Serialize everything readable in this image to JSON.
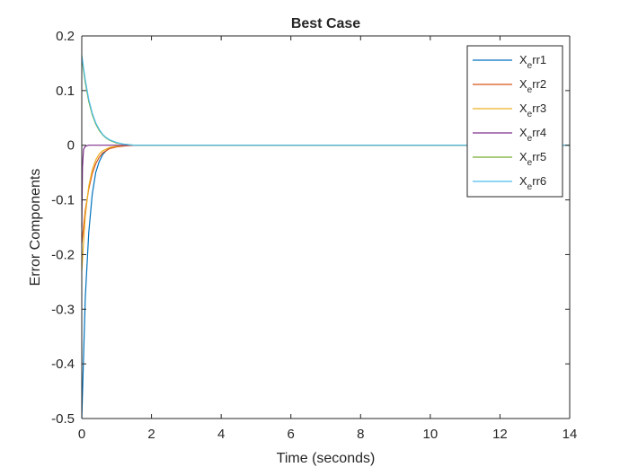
{
  "chart_data": {
    "type": "line",
    "title": "Best Case",
    "xlabel": "Time (seconds)",
    "ylabel": "Error Components",
    "xlim": [
      0,
      14
    ],
    "ylim": [
      -0.5,
      0.2
    ],
    "xticks": [
      0,
      2,
      4,
      6,
      8,
      10,
      12,
      14
    ],
    "xtick_labels": [
      "0",
      "2",
      "4",
      "6",
      "8",
      "10",
      "12",
      "14"
    ],
    "yticks": [
      0.2,
      0.1,
      0,
      -0.1,
      -0.2,
      -0.3,
      -0.4,
      -0.5
    ],
    "ytick_labels": [
      "0.2",
      "0.1",
      "0",
      "-0.1",
      "-0.2",
      "-0.3",
      "-0.4",
      "-0.5"
    ],
    "grid": false,
    "legend_position": "top-right",
    "series": [
      {
        "name": "X_err1",
        "legend_base": "X",
        "legend_sub": "e",
        "legend_rest": "rr1",
        "color": "#0072BD",
        "x": [
          0,
          0.1,
          0.2,
          0.3,
          0.4,
          0.5,
          0.6,
          0.7,
          0.8,
          1.0,
          1.2,
          1.5,
          2.0,
          14
        ],
        "y": [
          -0.5,
          -0.28,
          -0.16,
          -0.09,
          -0.05,
          -0.03,
          -0.017,
          -0.01,
          -0.005,
          -0.002,
          -0.001,
          0,
          0,
          0
        ]
      },
      {
        "name": "X_err2",
        "legend_base": "X",
        "legend_sub": "e",
        "legend_rest": "rr2",
        "color": "#D95319",
        "x": [
          0,
          0.1,
          0.2,
          0.3,
          0.4,
          0.5,
          0.6,
          0.8,
          1.0,
          1.3,
          1.6,
          2.0,
          14
        ],
        "y": [
          -0.18,
          -0.12,
          -0.08,
          -0.052,
          -0.034,
          -0.022,
          -0.014,
          -0.006,
          -0.003,
          -0.001,
          0,
          0,
          0
        ]
      },
      {
        "name": "X_err3",
        "legend_base": "X",
        "legend_sub": "e",
        "legend_rest": "rr3",
        "color": "#EDB120",
        "x": [
          0,
          0.1,
          0.2,
          0.3,
          0.4,
          0.5,
          0.6,
          0.8,
          1.0,
          1.3,
          1.6,
          2.0,
          14
        ],
        "y": [
          -0.23,
          -0.13,
          -0.075,
          -0.045,
          -0.027,
          -0.016,
          -0.01,
          -0.004,
          -0.0015,
          0,
          0,
          0,
          0
        ]
      },
      {
        "name": "X_err4",
        "legend_base": "X",
        "legend_sub": "e",
        "legend_rest": "rr4",
        "color": "#7E2F8E",
        "x": [
          0,
          0.02,
          0.05,
          0.1,
          0.2,
          0.4,
          14
        ],
        "y": [
          -0.15,
          -0.04,
          -0.008,
          -0.002,
          0,
          0,
          0
        ]
      },
      {
        "name": "X_err5",
        "legend_base": "X",
        "legend_sub": "e",
        "legend_rest": "rr5",
        "color": "#77AC30",
        "x": [
          0,
          0.1,
          0.2,
          0.3,
          0.4,
          0.5,
          0.6,
          0.7,
          0.8,
          1.0,
          1.2,
          1.5,
          2.0,
          14
        ],
        "y": [
          0.16,
          0.115,
          0.08,
          0.056,
          0.039,
          0.027,
          0.019,
          0.013,
          0.009,
          0.004,
          0.002,
          0,
          0,
          0
        ]
      },
      {
        "name": "X_err6",
        "legend_base": "X",
        "legend_sub": "e",
        "legend_rest": "rr6",
        "color": "#4DBEEE",
        "x": [
          0,
          0.1,
          0.2,
          0.3,
          0.4,
          0.5,
          0.6,
          0.7,
          0.8,
          1.0,
          1.2,
          1.5,
          2.0,
          14
        ],
        "y": [
          0.165,
          0.12,
          0.084,
          0.059,
          0.041,
          0.029,
          0.02,
          0.014,
          0.01,
          0.005,
          0.002,
          0,
          0,
          0
        ]
      }
    ]
  }
}
